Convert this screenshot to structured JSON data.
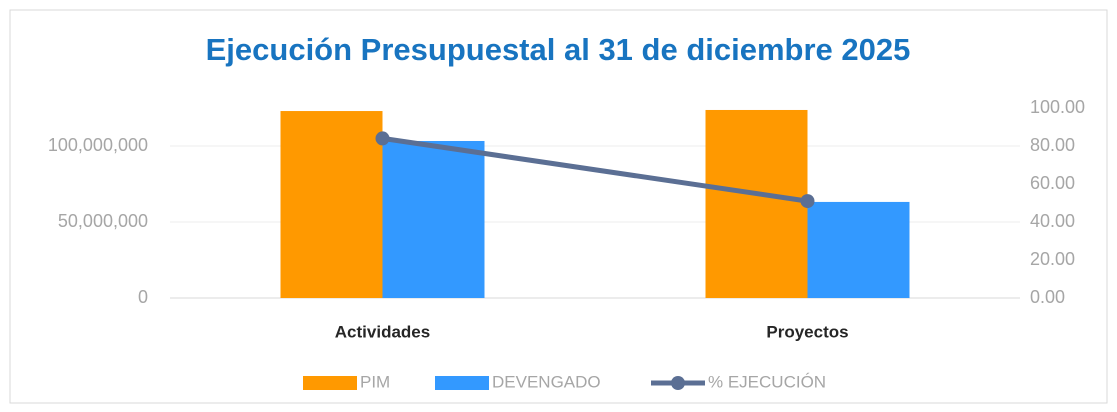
{
  "chart_data": {
    "type": "bar_line",
    "title": "Ejecución Presupuestal al 31 de diciembre 2025",
    "categories": [
      "Actividades",
      "Proyectos"
    ],
    "series": [
      {
        "name": "PIM",
        "color": "#FF9900",
        "type": "bar",
        "values": [
          123000000,
          123700000
        ]
      },
      {
        "name": "DEVENGADO",
        "color": "#3399FF",
        "type": "bar",
        "values": [
          103300000,
          63200000
        ]
      },
      {
        "name": "% EJECUCIÓN",
        "color": "#5B6F94",
        "type": "line",
        "axis": "y2",
        "values": [
          84,
          51
        ]
      }
    ],
    "ylim": [
      0,
      125000000
    ],
    "yticks": [
      0,
      {
        "value": 50000000,
        "label": "50,000,000"
      },
      {
        "value": 100000000,
        "label": "100,000,000"
      }
    ],
    "y2lim": [
      0,
      100
    ],
    "y2ticks": [
      {
        "value": 0,
        "label": "0.00"
      },
      {
        "value": 20,
        "label": "20.00"
      },
      {
        "value": 40,
        "label": "40.00"
      },
      {
        "value": 60,
        "label": "60.00"
      },
      {
        "value": 80,
        "label": "80.00"
      },
      {
        "value": 100,
        "label": "100.00"
      }
    ],
    "grid": true,
    "legend": "bottom"
  }
}
